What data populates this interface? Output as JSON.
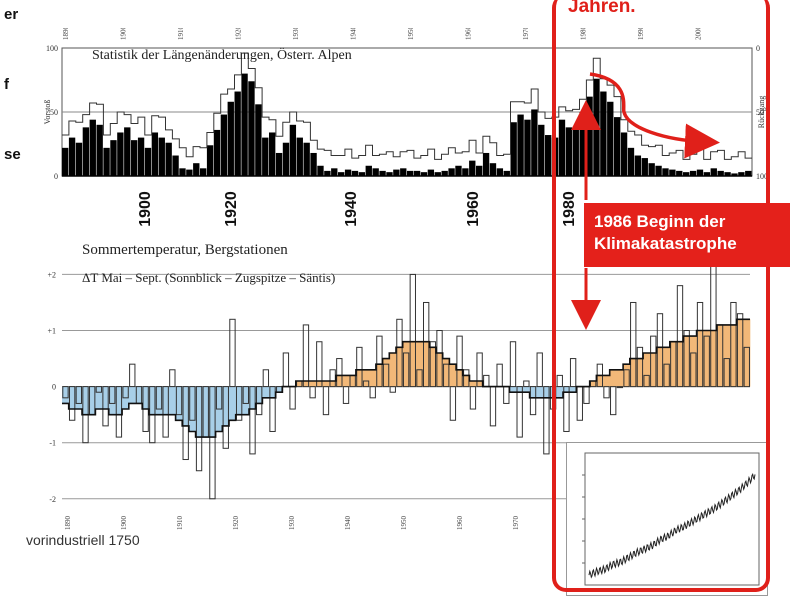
{
  "side_fragments": [
    "er",
    "f",
    "se"
  ],
  "red_heading": "Jahren.",
  "callout": {
    "line1": "1986  Beginn der",
    "line2": "Klimakatastrophe"
  },
  "footnote": "vorindustriell 1750",
  "colors": {
    "red": "#e0201a",
    "warm": "#f2b878",
    "cool": "#a8cfe8",
    "bar": "#000000"
  },
  "chart_data": [
    {
      "type": "bar",
      "title": "Statistik der Längenänderungen, Österr. Alpen",
      "ylabel_left": "Vorstoß",
      "ylabel_right": "Rückgang",
      "left_ticks": [
        "100",
        "50",
        "0"
      ],
      "right_ticks": [
        "0",
        "50",
        "100"
      ],
      "top_ticks": [
        "1890",
        "1900",
        "1910",
        "1920",
        "1930",
        "1940",
        "1950",
        "1960",
        "1970",
        "1980",
        "1990",
        "2000"
      ],
      "xticks": [
        "1900",
        "1920",
        "1940",
        "1960",
        "1980"
      ],
      "ylim": [
        0,
        100
      ],
      "start_year": 1891,
      "advance_pct": [
        22,
        30,
        26,
        38,
        44,
        40,
        22,
        28,
        34,
        38,
        28,
        30,
        22,
        34,
        30,
        26,
        16,
        6,
        5,
        10,
        6,
        24,
        36,
        48,
        58,
        66,
        80,
        74,
        56,
        30,
        34,
        18,
        26,
        40,
        30,
        26,
        18,
        8,
        4,
        6,
        3,
        5,
        4,
        3,
        8,
        6,
        4,
        3,
        5,
        6,
        4,
        4,
        3,
        5,
        3,
        4,
        6,
        8,
        6,
        12,
        8,
        18,
        10,
        6,
        4,
        42,
        48,
        44,
        52,
        40,
        32,
        30,
        44,
        38,
        36,
        50,
        62,
        76,
        66,
        58,
        46,
        34,
        22,
        16,
        14,
        10,
        8,
        6,
        5,
        4,
        3,
        4,
        5,
        3,
        6,
        4,
        3,
        2,
        3,
        4
      ]
    },
    {
      "type": "bar",
      "title": "Sommertemperatur, Bergstationen",
      "subtitle": "ΔT Mai – Sept. (Sonnblick – Zugspitze – Säntis)",
      "yticks": [
        "+2",
        "+1",
        "0",
        "-1",
        "-2"
      ],
      "xticks": [
        "1890",
        "1900",
        "1910",
        "1920",
        "1930",
        "1940",
        "1950",
        "1960",
        "1970"
      ],
      "ylim": [
        -2.2,
        2.4
      ],
      "start_year": 1887,
      "anomaly": [
        -0.2,
        -0.6,
        -0.3,
        -1.0,
        -0.5,
        -0.1,
        -0.7,
        -0.3,
        -0.9,
        -0.2,
        0.4,
        -0.3,
        -0.8,
        -1.0,
        -0.4,
        -0.9,
        0.3,
        -0.5,
        -1.3,
        -0.6,
        -1.5,
        -0.9,
        -2.0,
        -0.4,
        -1.1,
        1.2,
        -0.6,
        -0.3,
        -1.2,
        -0.5,
        0.3,
        -0.8,
        -0.1,
        0.6,
        -0.4,
        0.1,
        1.1,
        -0.2,
        0.8,
        -0.5,
        0.3,
        0.5,
        -0.3,
        0.2,
        0.7,
        0.1,
        -0.2,
        0.9,
        0.4,
        -0.1,
        1.2,
        0.6,
        2.0,
        0.3,
        1.5,
        0.8,
        1.0,
        0.4,
        -0.6,
        0.9,
        0.3,
        -0.4,
        0.6,
        0.2,
        -0.7,
        0.4,
        -0.3,
        0.8,
        -0.9,
        0.1,
        -0.5,
        0.6,
        -1.2,
        -0.4,
        0.2,
        -0.8,
        0.5,
        -0.6,
        -0.3,
        0.1,
        0.4,
        -0.2,
        -0.5,
        0.0,
        0.3,
        1.5,
        0.7,
        0.2,
        0.9,
        1.3,
        0.4,
        0.8,
        1.8,
        1.0,
        0.6,
        1.5,
        0.9,
        2.4,
        1.1,
        0.5,
        1.5,
        1.3,
        0.7
      ],
      "smoothed": [
        -0.3,
        -0.4,
        -0.4,
        -0.5,
        -0.5,
        -0.4,
        -0.4,
        -0.5,
        -0.5,
        -0.4,
        -0.3,
        -0.3,
        -0.4,
        -0.5,
        -0.5,
        -0.5,
        -0.5,
        -0.6,
        -0.7,
        -0.8,
        -0.9,
        -0.9,
        -0.9,
        -0.8,
        -0.7,
        -0.6,
        -0.5,
        -0.5,
        -0.4,
        -0.3,
        -0.2,
        -0.2,
        -0.1,
        0.0,
        0.0,
        0.1,
        0.1,
        0.1,
        0.1,
        0.1,
        0.1,
        0.2,
        0.2,
        0.2,
        0.3,
        0.3,
        0.3,
        0.4,
        0.5,
        0.6,
        0.7,
        0.8,
        0.8,
        0.8,
        0.8,
        0.7,
        0.6,
        0.5,
        0.4,
        0.3,
        0.2,
        0.1,
        0.1,
        0.0,
        0.0,
        0.0,
        0.0,
        -0.1,
        -0.1,
        -0.1,
        -0.2,
        -0.2,
        -0.2,
        -0.2,
        -0.2,
        -0.1,
        -0.1,
        0.0,
        0.0,
        0.1,
        0.2,
        0.2,
        0.3,
        0.3,
        0.4,
        0.5,
        0.5,
        0.6,
        0.6,
        0.7,
        0.7,
        0.8,
        0.8,
        0.9,
        0.9,
        1.0,
        1.0,
        1.0,
        1.1,
        1.1,
        1.1,
        1.2,
        1.2
      ]
    },
    {
      "type": "line",
      "title": "",
      "trend": [
        0.05,
        0.08,
        0.1,
        0.14,
        0.16,
        0.2,
        0.24,
        0.27,
        0.3,
        0.35,
        0.38,
        0.43,
        0.46,
        0.5,
        0.54,
        0.58,
        0.62,
        0.67,
        0.72,
        0.77,
        0.83,
        0.9
      ],
      "seasonal_amplitude": 0.03
    }
  ]
}
